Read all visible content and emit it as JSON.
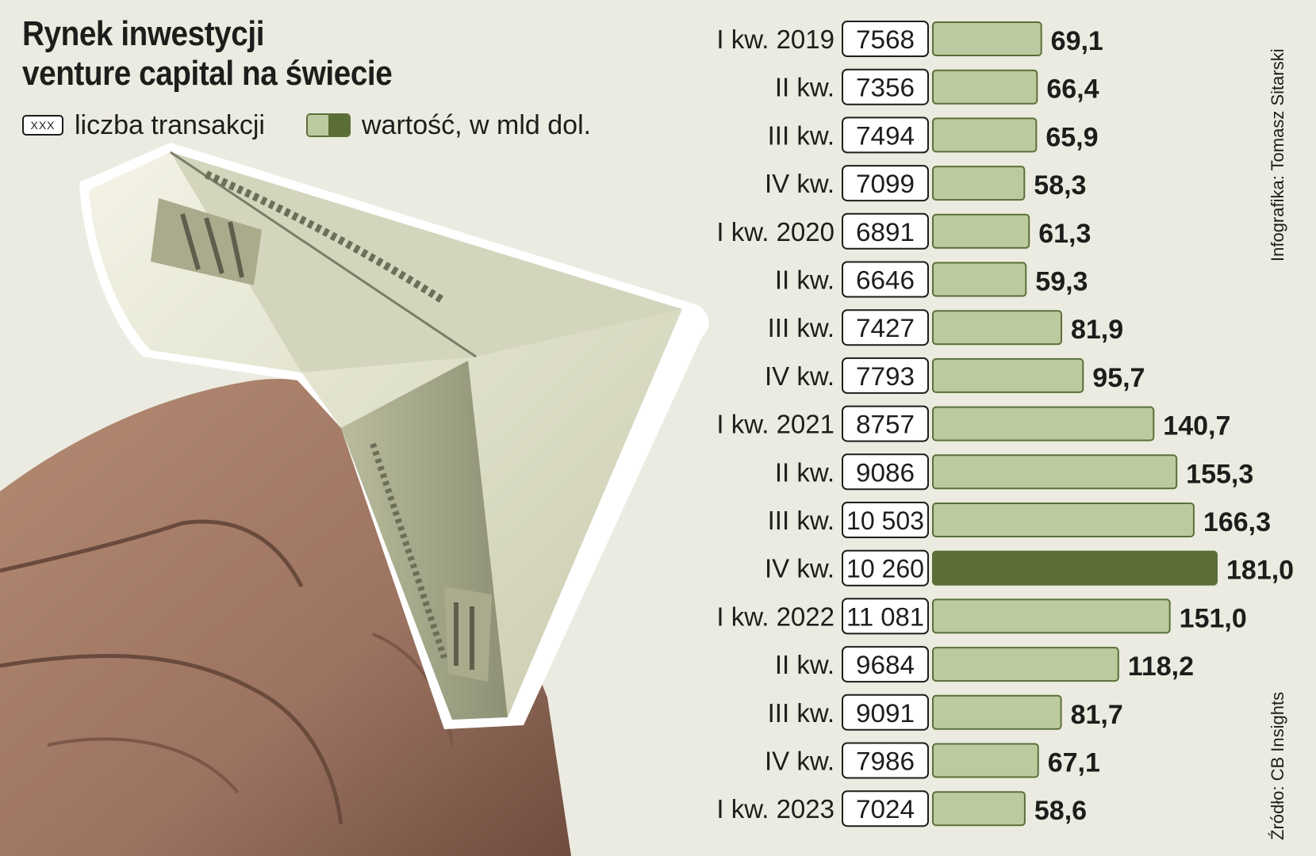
{
  "title_lines": [
    "Rynek inwestycji",
    "venture capital na świecie"
  ],
  "legend": {
    "box_sample": "XXX",
    "count_label": "liczba transakcji",
    "value_label": "wartość, w mld dol."
  },
  "credit": "Infografika: Tomasz Sitarski",
  "source": "Źródło: CB Insights",
  "colors": {
    "bar": "#bccaa0",
    "bar_highlight": "#5a6e36",
    "bar_border": "#5a7038",
    "background": "#ecebe1"
  },
  "chart_data": {
    "type": "bar",
    "orientation": "horizontal",
    "categories": [
      "I kw. 2019",
      "II kw.",
      "III kw.",
      "IV kw.",
      "I kw. 2020",
      "II kw.",
      "III kw.",
      "IV kw.",
      "I kw. 2021",
      "II kw.",
      "III kw.",
      "IV kw.",
      "I kw. 2022",
      "II kw.",
      "III kw.",
      "IV kw.",
      "I kw. 2023"
    ],
    "counts": [
      "7568",
      "7356",
      "7494",
      "7099",
      "6891",
      "6646",
      "7427",
      "7793",
      "8757",
      "9086",
      "10 503",
      "10 260",
      "11 081",
      "9684",
      "9091",
      "7986",
      "7024"
    ],
    "series": [
      {
        "values": [
          69.1,
          66.4,
          65.9,
          58.3,
          61.3,
          59.3,
          81.9,
          95.7,
          140.7,
          155.3,
          166.3,
          181.0,
          151.0,
          118.2,
          81.7,
          67.1,
          58.6
        ],
        "value_labels": [
          "69,1",
          "66,4",
          "65,9",
          "58,3",
          "61,3",
          "59,3",
          "81,9",
          "95,7",
          "140,7",
          "155,3",
          "166,3",
          "181,0",
          "151,0",
          "118,2",
          "81,7",
          "67,1",
          "58,6"
        ]
      }
    ],
    "highlight_index": 11
  }
}
